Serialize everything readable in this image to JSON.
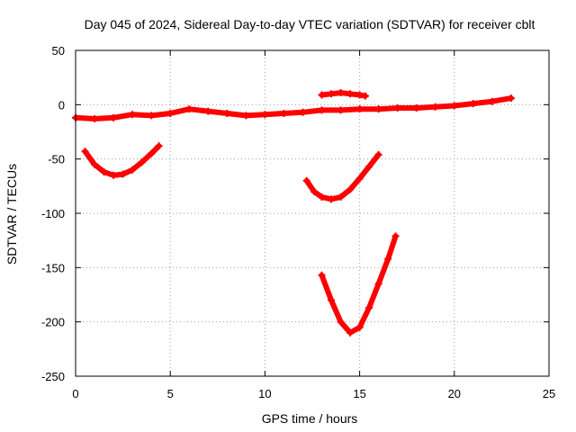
{
  "chart_data": {
    "type": "scatter",
    "title": "Day 045 of 2024, Sidereal Day-to-day VTEC variation (SDTVAR) for receiver cblt",
    "xlabel": "GPS time / hours",
    "ylabel": "SDTVAR / TECUs",
    "xlim": [
      0,
      25
    ],
    "ylim": [
      -250,
      50
    ],
    "xticks": [
      0,
      5,
      10,
      15,
      20,
      25
    ],
    "yticks": [
      50,
      0,
      -50,
      -100,
      -150,
      -200,
      -250
    ],
    "grid": true,
    "legend": "none",
    "color": "#ff0000",
    "series": [
      {
        "points": [
          [
            0.0,
            -12
          ],
          [
            1.0,
            -13
          ],
          [
            2.0,
            -12
          ],
          [
            3.0,
            -9
          ],
          [
            4.0,
            -10
          ],
          [
            5.0,
            -8
          ],
          [
            6.0,
            -4
          ],
          [
            7.0,
            -6
          ],
          [
            8.0,
            -8
          ],
          [
            9.0,
            -10
          ],
          [
            10.0,
            -9
          ],
          [
            11.0,
            -8
          ],
          [
            12.0,
            -7
          ],
          [
            13.0,
            -5
          ],
          [
            14.0,
            -5
          ],
          [
            15.0,
            -4
          ],
          [
            16.0,
            -4
          ],
          [
            17.0,
            -3
          ],
          [
            18.0,
            -3
          ],
          [
            19.0,
            -2
          ],
          [
            20.0,
            -1
          ],
          [
            21.0,
            1
          ],
          [
            22.0,
            3
          ],
          [
            23.0,
            6
          ]
        ]
      },
      {
        "points": [
          [
            13.0,
            9
          ],
          [
            13.5,
            10
          ],
          [
            14.0,
            11
          ],
          [
            14.5,
            10
          ],
          [
            15.0,
            9
          ],
          [
            15.3,
            8
          ]
        ]
      },
      {
        "points": [
          [
            0.5,
            -43
          ],
          [
            1.0,
            -55
          ],
          [
            1.5,
            -62
          ],
          [
            2.0,
            -65
          ],
          [
            2.5,
            -64
          ],
          [
            3.0,
            -60
          ],
          [
            3.5,
            -53
          ],
          [
            4.0,
            -45
          ],
          [
            4.4,
            -38
          ]
        ]
      },
      {
        "points": [
          [
            12.2,
            -70
          ],
          [
            12.6,
            -80
          ],
          [
            13.0,
            -85
          ],
          [
            13.5,
            -87
          ],
          [
            14.0,
            -85
          ],
          [
            14.5,
            -78
          ],
          [
            15.0,
            -68
          ],
          [
            15.5,
            -57
          ],
          [
            16.0,
            -46
          ]
        ]
      },
      {
        "points": [
          [
            13.0,
            -157
          ],
          [
            13.5,
            -180
          ],
          [
            14.0,
            -200
          ],
          [
            14.5,
            -210
          ],
          [
            15.0,
            -205
          ],
          [
            15.5,
            -187
          ],
          [
            16.0,
            -165
          ],
          [
            16.5,
            -142
          ],
          [
            16.9,
            -121
          ]
        ]
      }
    ]
  }
}
